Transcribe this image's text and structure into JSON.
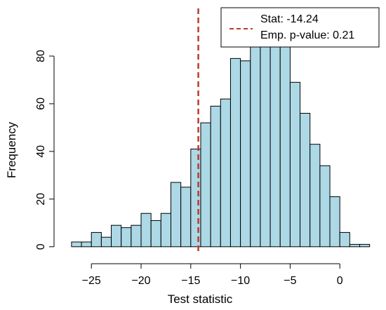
{
  "chart_data": {
    "type": "bar",
    "title": "",
    "xlabel": "Test statistic",
    "ylabel": "Frequency",
    "bin_width": 1,
    "bin_start": [
      -27,
      -26,
      -25,
      -24,
      -23,
      -22,
      -21,
      -20,
      -19,
      -18,
      -17,
      -16,
      -15,
      -14,
      -13,
      -12,
      -11,
      -10,
      -9,
      -8,
      -7,
      -6,
      -5,
      -4,
      -3,
      -2,
      -1,
      0,
      1,
      2
    ],
    "values": [
      2,
      2,
      6,
      4,
      9,
      8,
      9,
      14,
      11,
      14,
      27,
      25,
      41,
      52,
      59,
      62,
      79,
      78,
      85,
      87,
      85,
      91,
      69,
      56,
      43,
      34,
      21,
      6,
      1,
      1
    ],
    "xticks": [
      -25,
      -20,
      -15,
      -10,
      -5,
      0
    ],
    "xtick_labels": [
      "−25",
      "−20",
      "−15",
      "−10",
      "−5",
      "0"
    ],
    "yticks": [
      0,
      20,
      40,
      60,
      80
    ],
    "ytick_labels": [
      "0",
      "20",
      "40",
      "60",
      "80"
    ],
    "xlim": [
      -27.7,
      3.8
    ],
    "ylim": [
      -3,
      100
    ],
    "bar_fill": "#add8e6",
    "bar_stroke": "#000000",
    "reference_line": {
      "x": -14.24,
      "color": "#c0392b",
      "style": "dashed"
    },
    "legend": {
      "placement": "top-right",
      "stat_label": "Stat: -14.24",
      "pvalue_label": "Emp. p-value: 0.21"
    }
  }
}
